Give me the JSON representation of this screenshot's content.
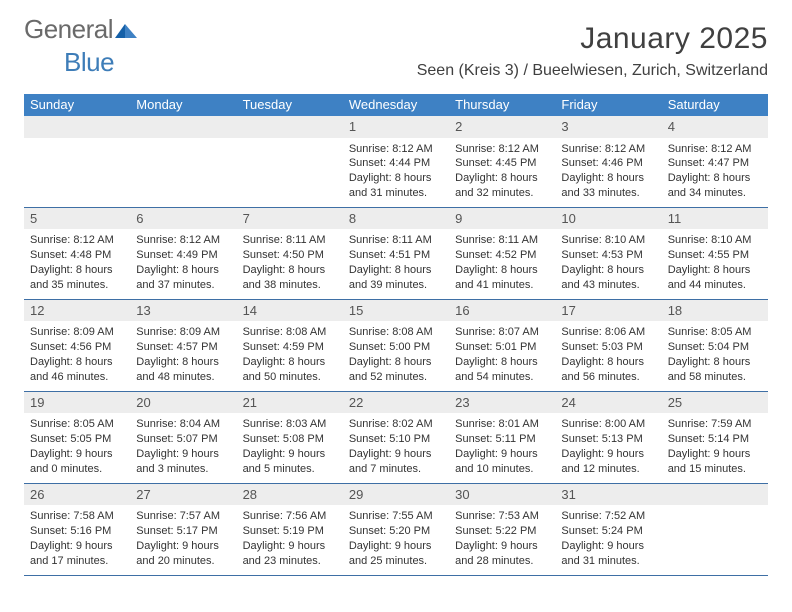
{
  "logo": {
    "part1": "General",
    "part2": "Blue"
  },
  "title": "January 2025",
  "location": "Seen (Kreis 3) / Bueelwiesen, Zurich, Switzerland",
  "colors": {
    "header_bg": "#3e81c4",
    "header_text": "#ffffff",
    "daynum_bg": "#ededed",
    "border": "#3e6fa5",
    "body_text": "#333333"
  },
  "weekdays": [
    "Sunday",
    "Monday",
    "Tuesday",
    "Wednesday",
    "Thursday",
    "Friday",
    "Saturday"
  ],
  "weeks": [
    [
      {
        "n": "",
        "sr": "",
        "ss": "",
        "dl": ""
      },
      {
        "n": "",
        "sr": "",
        "ss": "",
        "dl": ""
      },
      {
        "n": "",
        "sr": "",
        "ss": "",
        "dl": ""
      },
      {
        "n": "1",
        "sr": "8:12 AM",
        "ss": "4:44 PM",
        "dl": "8 hours and 31 minutes."
      },
      {
        "n": "2",
        "sr": "8:12 AM",
        "ss": "4:45 PM",
        "dl": "8 hours and 32 minutes."
      },
      {
        "n": "3",
        "sr": "8:12 AM",
        "ss": "4:46 PM",
        "dl": "8 hours and 33 minutes."
      },
      {
        "n": "4",
        "sr": "8:12 AM",
        "ss": "4:47 PM",
        "dl": "8 hours and 34 minutes."
      }
    ],
    [
      {
        "n": "5",
        "sr": "8:12 AM",
        "ss": "4:48 PM",
        "dl": "8 hours and 35 minutes."
      },
      {
        "n": "6",
        "sr": "8:12 AM",
        "ss": "4:49 PM",
        "dl": "8 hours and 37 minutes."
      },
      {
        "n": "7",
        "sr": "8:11 AM",
        "ss": "4:50 PM",
        "dl": "8 hours and 38 minutes."
      },
      {
        "n": "8",
        "sr": "8:11 AM",
        "ss": "4:51 PM",
        "dl": "8 hours and 39 minutes."
      },
      {
        "n": "9",
        "sr": "8:11 AM",
        "ss": "4:52 PM",
        "dl": "8 hours and 41 minutes."
      },
      {
        "n": "10",
        "sr": "8:10 AM",
        "ss": "4:53 PM",
        "dl": "8 hours and 43 minutes."
      },
      {
        "n": "11",
        "sr": "8:10 AM",
        "ss": "4:55 PM",
        "dl": "8 hours and 44 minutes."
      }
    ],
    [
      {
        "n": "12",
        "sr": "8:09 AM",
        "ss": "4:56 PM",
        "dl": "8 hours and 46 minutes."
      },
      {
        "n": "13",
        "sr": "8:09 AM",
        "ss": "4:57 PM",
        "dl": "8 hours and 48 minutes."
      },
      {
        "n": "14",
        "sr": "8:08 AM",
        "ss": "4:59 PM",
        "dl": "8 hours and 50 minutes."
      },
      {
        "n": "15",
        "sr": "8:08 AM",
        "ss": "5:00 PM",
        "dl": "8 hours and 52 minutes."
      },
      {
        "n": "16",
        "sr": "8:07 AM",
        "ss": "5:01 PM",
        "dl": "8 hours and 54 minutes."
      },
      {
        "n": "17",
        "sr": "8:06 AM",
        "ss": "5:03 PM",
        "dl": "8 hours and 56 minutes."
      },
      {
        "n": "18",
        "sr": "8:05 AM",
        "ss": "5:04 PM",
        "dl": "8 hours and 58 minutes."
      }
    ],
    [
      {
        "n": "19",
        "sr": "8:05 AM",
        "ss": "5:05 PM",
        "dl": "9 hours and 0 minutes."
      },
      {
        "n": "20",
        "sr": "8:04 AM",
        "ss": "5:07 PM",
        "dl": "9 hours and 3 minutes."
      },
      {
        "n": "21",
        "sr": "8:03 AM",
        "ss": "5:08 PM",
        "dl": "9 hours and 5 minutes."
      },
      {
        "n": "22",
        "sr": "8:02 AM",
        "ss": "5:10 PM",
        "dl": "9 hours and 7 minutes."
      },
      {
        "n": "23",
        "sr": "8:01 AM",
        "ss": "5:11 PM",
        "dl": "9 hours and 10 minutes."
      },
      {
        "n": "24",
        "sr": "8:00 AM",
        "ss": "5:13 PM",
        "dl": "9 hours and 12 minutes."
      },
      {
        "n": "25",
        "sr": "7:59 AM",
        "ss": "5:14 PM",
        "dl": "9 hours and 15 minutes."
      }
    ],
    [
      {
        "n": "26",
        "sr": "7:58 AM",
        "ss": "5:16 PM",
        "dl": "9 hours and 17 minutes."
      },
      {
        "n": "27",
        "sr": "7:57 AM",
        "ss": "5:17 PM",
        "dl": "9 hours and 20 minutes."
      },
      {
        "n": "28",
        "sr": "7:56 AM",
        "ss": "5:19 PM",
        "dl": "9 hours and 23 minutes."
      },
      {
        "n": "29",
        "sr": "7:55 AM",
        "ss": "5:20 PM",
        "dl": "9 hours and 25 minutes."
      },
      {
        "n": "30",
        "sr": "7:53 AM",
        "ss": "5:22 PM",
        "dl": "9 hours and 28 minutes."
      },
      {
        "n": "31",
        "sr": "7:52 AM",
        "ss": "5:24 PM",
        "dl": "9 hours and 31 minutes."
      },
      {
        "n": "",
        "sr": "",
        "ss": "",
        "dl": ""
      }
    ]
  ],
  "labels": {
    "sunrise": "Sunrise: ",
    "sunset": "Sunset: ",
    "daylight": "Daylight: "
  }
}
